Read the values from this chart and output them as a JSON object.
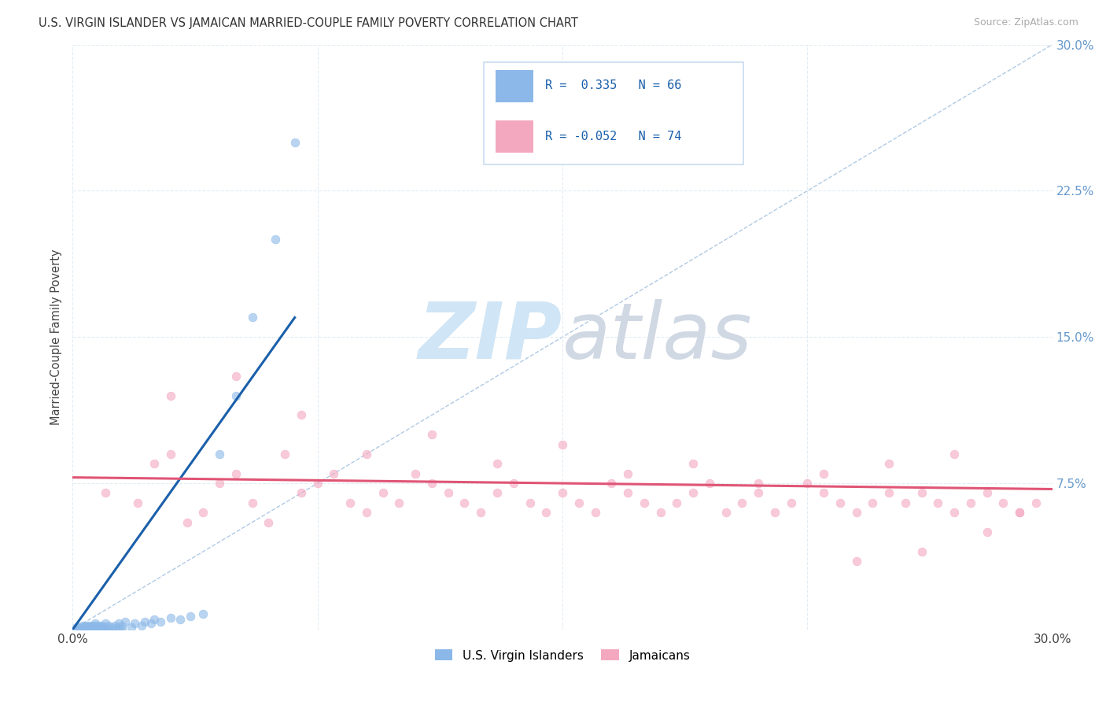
{
  "title": "U.S. VIRGIN ISLANDER VS JAMAICAN MARRIED-COUPLE FAMILY POVERTY CORRELATION CHART",
  "source": "Source: ZipAtlas.com",
  "ylabel": "Married-Couple Family Poverty",
  "xlim": [
    0.0,
    0.3
  ],
  "ylim": [
    0.0,
    0.3
  ],
  "vi_R": 0.335,
  "vi_N": 66,
  "jam_R": -0.052,
  "jam_N": 74,
  "vi_color": "#8bb8e8",
  "jam_color": "#f4a8c0",
  "vi_line_color": "#1a5faa",
  "jam_line_color": "#e05575",
  "dashed_line_color": "#a8c4e0",
  "background_color": "#ffffff",
  "grid_color": "#dde8f0",
  "legend_edge_color": "#c8ddf0",
  "watermark_color": "#d0e5f5",
  "right_tick_color": "#6699cc",
  "vi_scatter_x": [
    0.001,
    0.001,
    0.002,
    0.002,
    0.002,
    0.003,
    0.003,
    0.003,
    0.003,
    0.004,
    0.004,
    0.004,
    0.004,
    0.005,
    0.005,
    0.005,
    0.005,
    0.005,
    0.006,
    0.006,
    0.006,
    0.006,
    0.006,
    0.006,
    0.007,
    0.007,
    0.007,
    0.007,
    0.007,
    0.007,
    0.008,
    0.008,
    0.008,
    0.008,
    0.009,
    0.009,
    0.009,
    0.01,
    0.01,
    0.01,
    0.011,
    0.011,
    0.012,
    0.013,
    0.013,
    0.014,
    0.014,
    0.015,
    0.015,
    0.016,
    0.018,
    0.019,
    0.021,
    0.022,
    0.024,
    0.025,
    0.027,
    0.03,
    0.033,
    0.036,
    0.04,
    0.045,
    0.05,
    0.055,
    0.062,
    0.068
  ],
  "vi_scatter_y": [
    0.0,
    0.001,
    0.0,
    0.001,
    0.0,
    0.0,
    0.001,
    0.002,
    0.0,
    0.0,
    0.001,
    0.002,
    0.0,
    0.0,
    0.001,
    0.0,
    0.002,
    0.001,
    0.0,
    0.001,
    0.0,
    0.001,
    0.002,
    0.0,
    0.0,
    0.001,
    0.002,
    0.0,
    0.001,
    0.003,
    0.0,
    0.001,
    0.002,
    0.0,
    0.0,
    0.001,
    0.002,
    0.0,
    0.001,
    0.003,
    0.0,
    0.002,
    0.001,
    0.0,
    0.002,
    0.001,
    0.003,
    0.0,
    0.002,
    0.004,
    0.001,
    0.003,
    0.002,
    0.004,
    0.003,
    0.005,
    0.004,
    0.006,
    0.005,
    0.007,
    0.008,
    0.09,
    0.12,
    0.16,
    0.2,
    0.25
  ],
  "vi_line_x": [
    0.0,
    0.068
  ],
  "vi_line_y": [
    0.0,
    0.16
  ],
  "jam_line_x": [
    0.0,
    0.3
  ],
  "jam_line_y": [
    0.078,
    0.072
  ],
  "jam_scatter_x": [
    0.01,
    0.02,
    0.025,
    0.03,
    0.035,
    0.04,
    0.045,
    0.05,
    0.055,
    0.06,
    0.065,
    0.07,
    0.075,
    0.08,
    0.085,
    0.09,
    0.095,
    0.1,
    0.105,
    0.11,
    0.115,
    0.12,
    0.125,
    0.13,
    0.135,
    0.14,
    0.145,
    0.15,
    0.155,
    0.16,
    0.165,
    0.17,
    0.175,
    0.18,
    0.185,
    0.19,
    0.195,
    0.2,
    0.205,
    0.21,
    0.215,
    0.22,
    0.225,
    0.23,
    0.235,
    0.24,
    0.245,
    0.25,
    0.255,
    0.26,
    0.265,
    0.27,
    0.275,
    0.28,
    0.285,
    0.29,
    0.295,
    0.03,
    0.05,
    0.07,
    0.09,
    0.11,
    0.13,
    0.15,
    0.17,
    0.19,
    0.21,
    0.23,
    0.25,
    0.27,
    0.29,
    0.28,
    0.26,
    0.24
  ],
  "jam_scatter_y": [
    0.07,
    0.065,
    0.085,
    0.09,
    0.055,
    0.06,
    0.075,
    0.08,
    0.065,
    0.055,
    0.09,
    0.07,
    0.075,
    0.08,
    0.065,
    0.06,
    0.07,
    0.065,
    0.08,
    0.075,
    0.07,
    0.065,
    0.06,
    0.07,
    0.075,
    0.065,
    0.06,
    0.07,
    0.065,
    0.06,
    0.075,
    0.07,
    0.065,
    0.06,
    0.065,
    0.07,
    0.075,
    0.06,
    0.065,
    0.07,
    0.06,
    0.065,
    0.075,
    0.07,
    0.065,
    0.06,
    0.065,
    0.07,
    0.065,
    0.07,
    0.065,
    0.06,
    0.065,
    0.07,
    0.065,
    0.06,
    0.065,
    0.12,
    0.13,
    0.11,
    0.09,
    0.1,
    0.085,
    0.095,
    0.08,
    0.085,
    0.075,
    0.08,
    0.085,
    0.09,
    0.06,
    0.05,
    0.04,
    0.035
  ]
}
